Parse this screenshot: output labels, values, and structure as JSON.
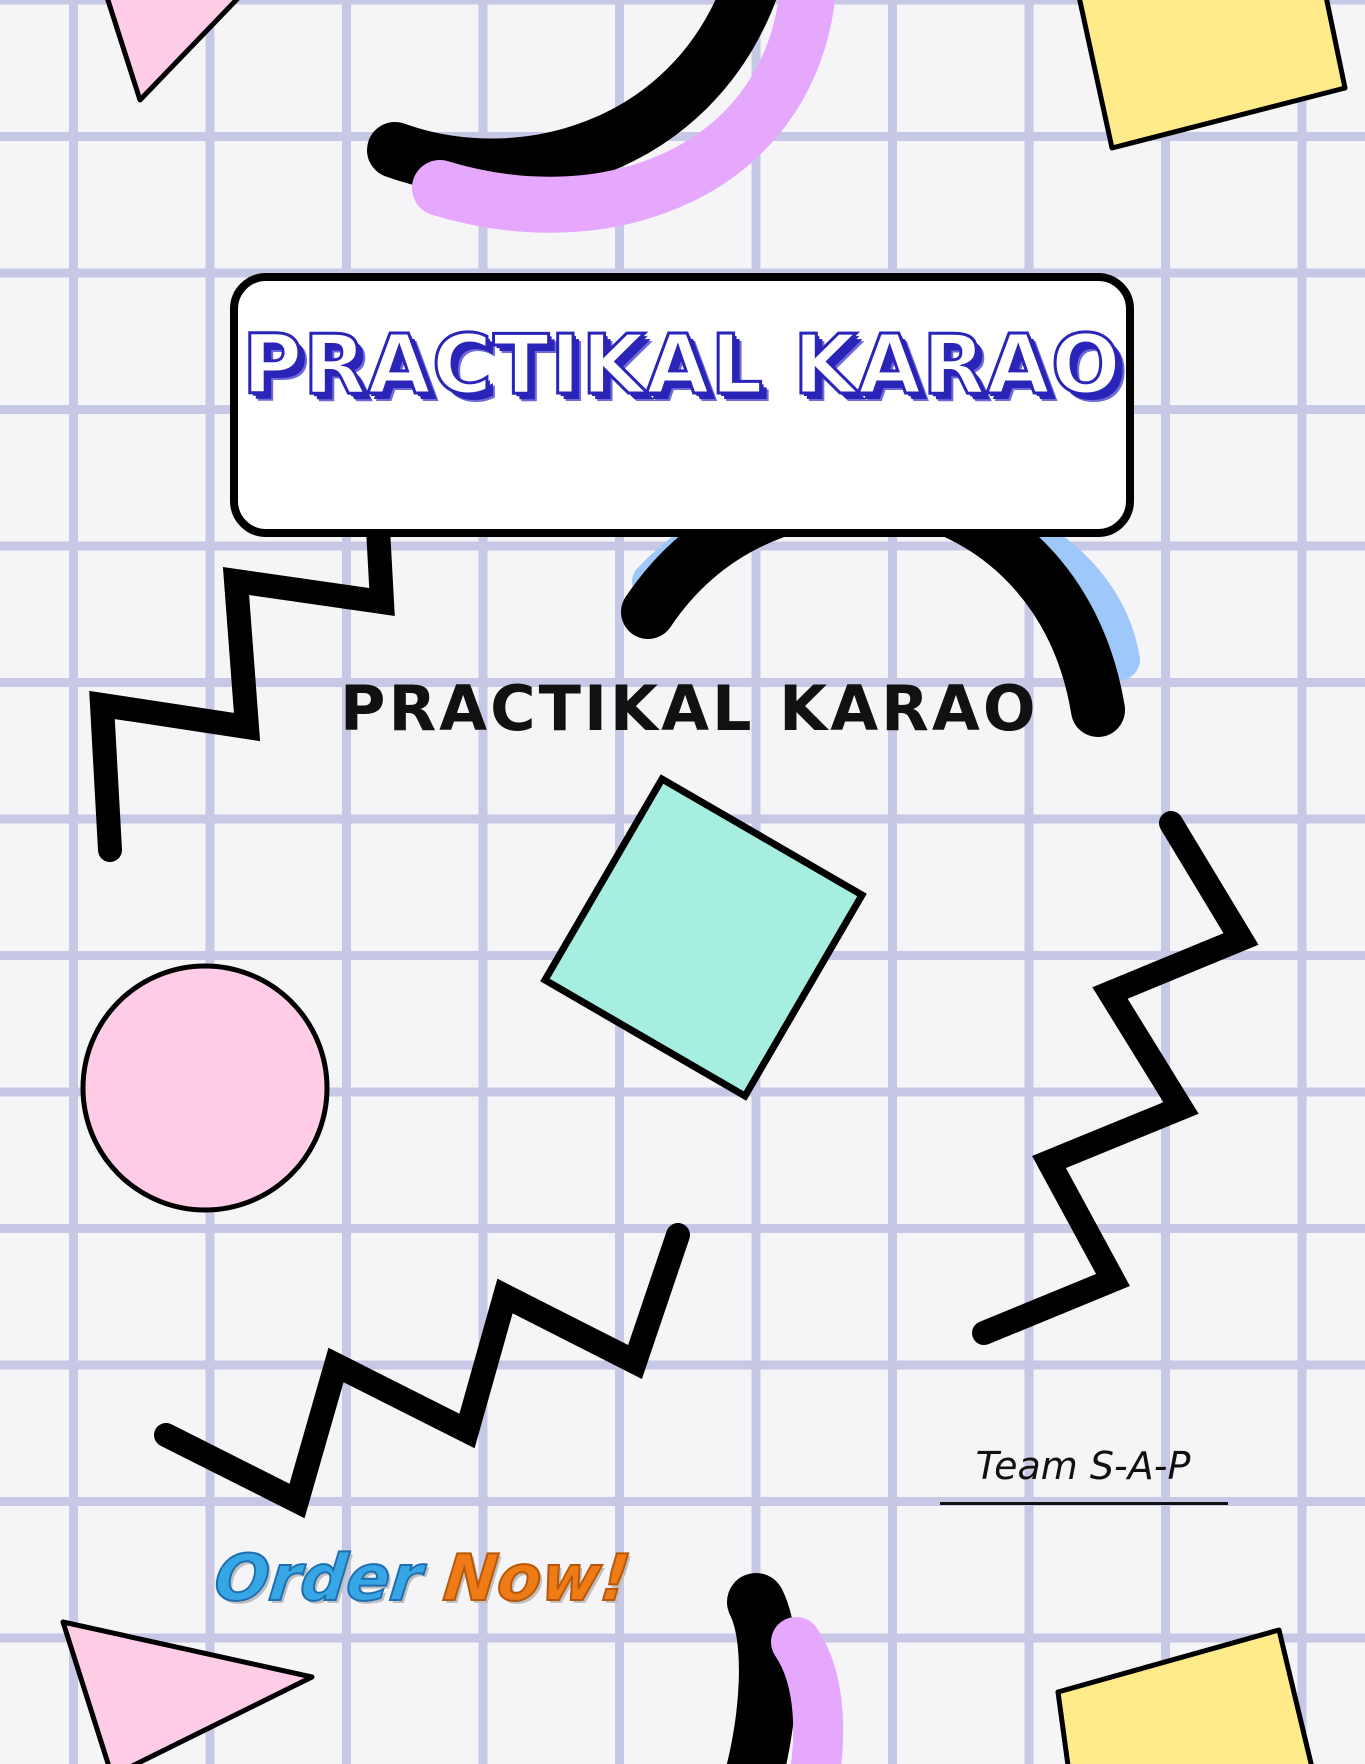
{
  "cover": {
    "title": "PRACTIKAL KARAO",
    "subtitle": "PRACTIKAL KARAO",
    "signature": "Team S-A-P",
    "cta": {
      "part1": "Order",
      "part2": "Now!"
    }
  },
  "colors": {
    "background": "#f5f5f7",
    "grid": "#c7c7e6",
    "pink": "#ffcce6",
    "lavender": "#e6a8fd",
    "yellow": "#ffeb8a",
    "mint": "#a6efe0",
    "blue": "#9ec8fa",
    "outline": "#000000",
    "title_blue": "#2a24b8",
    "cta_blue": "#37a6e5",
    "cta_orange": "#ee7b15"
  },
  "decorations": [
    "pink-triangle-top",
    "black-arc-top",
    "lavender-arc-top",
    "yellow-square-top",
    "blue-arc-middle",
    "black-arc-middle",
    "zigzag-left",
    "mint-square",
    "pink-circle",
    "zigzag-right",
    "zigzag-bottom",
    "pink-triangle-bottom",
    "black-arc-bottom",
    "lavender-arc-bottom",
    "yellow-square-bottom"
  ]
}
